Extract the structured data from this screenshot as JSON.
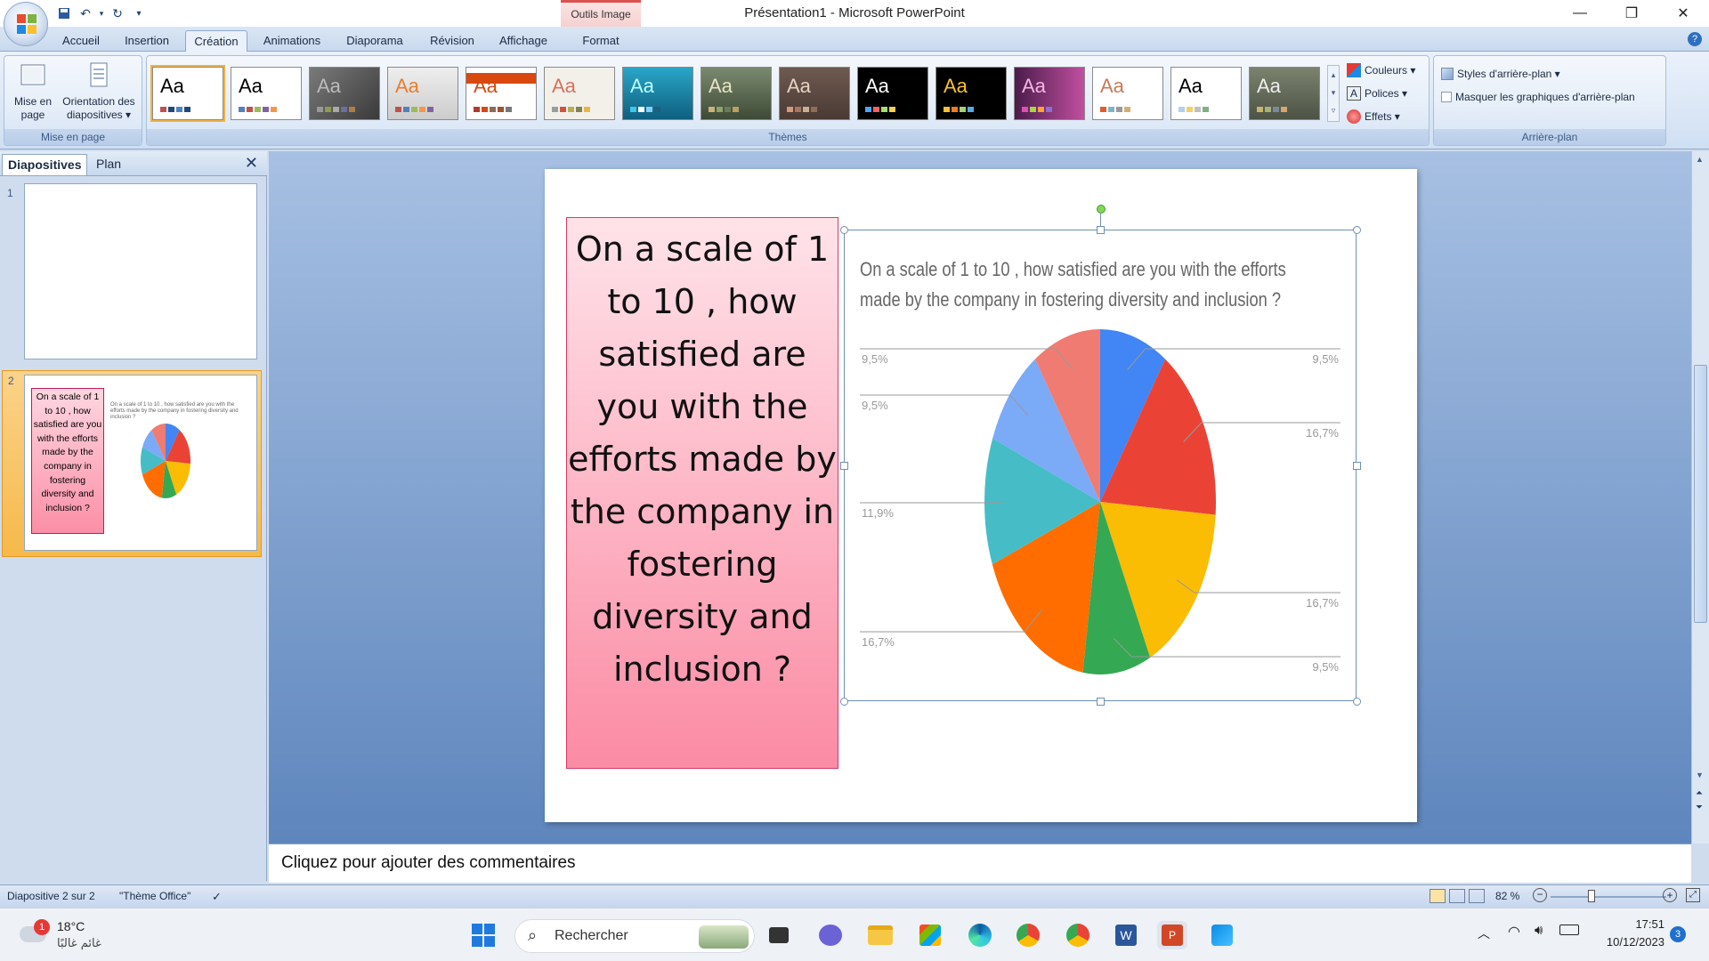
{
  "app": {
    "window_title": "Présentation1 - Microsoft PowerPoint",
    "contextual_tab_group": "Outils Image"
  },
  "ribbon": {
    "tabs": [
      "Accueil",
      "Insertion",
      "Création",
      "Animations",
      "Diaporama",
      "Révision",
      "Affichage",
      "Format"
    ],
    "active_tab": "Création",
    "mise_en_page": {
      "mise_en_page_label_1": "Mise en",
      "mise_en_page_label_2": "page",
      "orientation_label_1": "Orientation des",
      "orientation_label_2": "diapositives ▾",
      "group_label": "Mise en page"
    },
    "themes_group_label": "Thèmes",
    "theme_sample_text": "Aa",
    "theme_options": {
      "colors": "Couleurs ▾",
      "fonts": "Polices ▾",
      "effects": "Effets ▾"
    },
    "background": {
      "styles_label": "Styles d'arrière-plan ▾",
      "hide_graphics_label": "Masquer les graphiques d'arrière-plan",
      "group_label": "Arrière-plan"
    }
  },
  "left_pane": {
    "tabs": [
      "Diapositives",
      "Plan"
    ],
    "slides": [
      {
        "number": "1"
      },
      {
        "number": "2"
      }
    ],
    "thumb_text": "On a scale of 1 to 10 , how satisfied are you with the efforts made by the company in fostering diversity and inclusion ?"
  },
  "slide": {
    "question_text": "On a scale of 1 to 10 , how satisfied are you with the efforts made by the company in fostering diversity and inclusion ?",
    "chart_title_line1": "On a scale of 1 to 10 , how satisfied are you with the efforts",
    "chart_title_line2": "made by the company in fostering diversity and inclusion ?"
  },
  "chart_data": {
    "type": "pie",
    "title": "On a scale of 1 to 10 , how satisfied are you with the efforts made by the company in fostering diversity and inclusion ?",
    "slices": [
      {
        "value": 9.5,
        "label": "9,5%",
        "color": "#4285f4"
      },
      {
        "value": 16.7,
        "label": "16,7%",
        "color": "#ea4335"
      },
      {
        "value": 16.7,
        "label": "16,7%",
        "color": "#fbbc04"
      },
      {
        "value": 9.5,
        "label": "9,5%",
        "color": "#34a853"
      },
      {
        "value": 16.7,
        "label": "16,7%",
        "color": "#ff6d01"
      },
      {
        "value": 11.9,
        "label": "11,9%",
        "color": "#46bdc6"
      },
      {
        "value": 9.5,
        "label": "9,5%",
        "color": "#7baaf7"
      },
      {
        "value": 9.5,
        "label": "9,5%",
        "color": "#f07b72"
      }
    ]
  },
  "notes": {
    "placeholder": "Cliquez pour ajouter des commentaires"
  },
  "status_bar": {
    "slide_info": "Diapositive 2 sur 2",
    "theme": "\"Thème Office\"",
    "zoom": "82 %"
  },
  "taskbar": {
    "weather_temp": "18°C",
    "weather_text": "غائم غالبًا",
    "weather_badge": "1",
    "search_label": "Rechercher",
    "time": "17:51",
    "date": "10/12/2023",
    "notification_count": "3"
  }
}
